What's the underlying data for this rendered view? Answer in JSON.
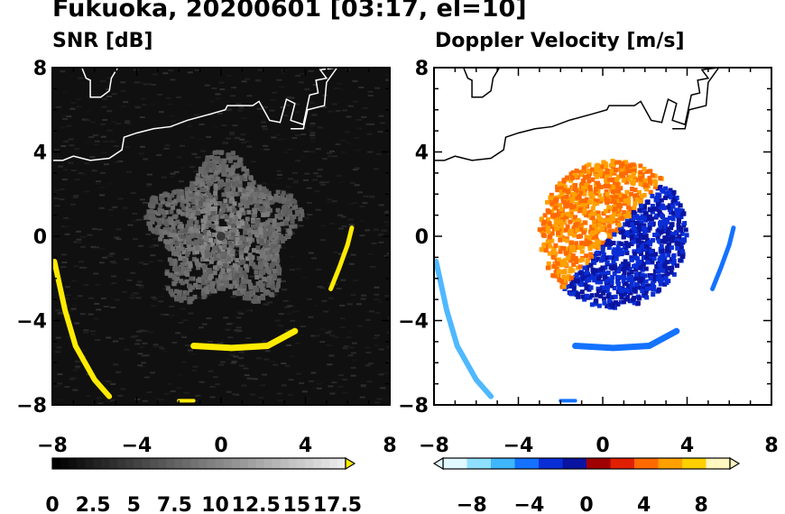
{
  "figure": {
    "title": "Fukuoka, 20200601 [03:17, el=10]"
  },
  "chart_data": [
    {
      "type": "heatmap",
      "title": "SNR [dB]",
      "xlim": [
        -8,
        8
      ],
      "ylim": [
        -8,
        8
      ],
      "x_ticks": [
        -8,
        -4,
        0,
        4,
        8
      ],
      "y_ticks": [
        8,
        4,
        0,
        -4,
        -8
      ],
      "x_tick_labels": [
        "−8",
        "−4",
        "0",
        "4",
        "8"
      ],
      "y_tick_labels": [
        "8",
        "4",
        "0",
        "−4",
        "−8"
      ],
      "colorbar": {
        "min": 0,
        "max": 18,
        "step": 0.5,
        "tick_values": [
          0,
          2.5,
          5,
          7.5,
          10,
          12.5,
          15,
          17.5
        ],
        "tick_labels": [
          "0",
          "2.5",
          "5",
          "7.5",
          "10",
          "12.5",
          "15",
          "17.5"
        ],
        "overflow_color": "#ffeb00",
        "palette": "grayscale"
      },
      "echo_color": "#ffeb00",
      "background_color": "#101010"
    },
    {
      "type": "heatmap",
      "title": "Doppler Velocity [m/s]",
      "xlim": [
        -8,
        8
      ],
      "ylim": [
        -8,
        8
      ],
      "x_ticks": [
        -8,
        -4,
        0,
        4,
        8
      ],
      "y_ticks": [
        8,
        4,
        0,
        -4,
        -8
      ],
      "x_tick_labels": [
        "−8",
        "−4",
        "0",
        "4",
        "8"
      ],
      "y_tick_labels": [
        "8",
        "4",
        "0",
        "−4",
        "−8"
      ],
      "colorbar": {
        "min": -10,
        "max": 10,
        "tick_values": [
          -8,
          -4,
          0,
          4,
          8
        ],
        "tick_labels": [
          "−8",
          "−4",
          "0",
          "4",
          "8"
        ],
        "negative_colors": [
          "#e0f8ff",
          "#8fe0ff",
          "#3fb6ff",
          "#1472ff",
          "#0a2ed6",
          "#0a14a0"
        ],
        "positive_colors": [
          "#a00000",
          "#e02000",
          "#ff6a00",
          "#ffa000",
          "#ffd000",
          "#fff6c0"
        ]
      },
      "background_color": "#ffffff"
    }
  ]
}
